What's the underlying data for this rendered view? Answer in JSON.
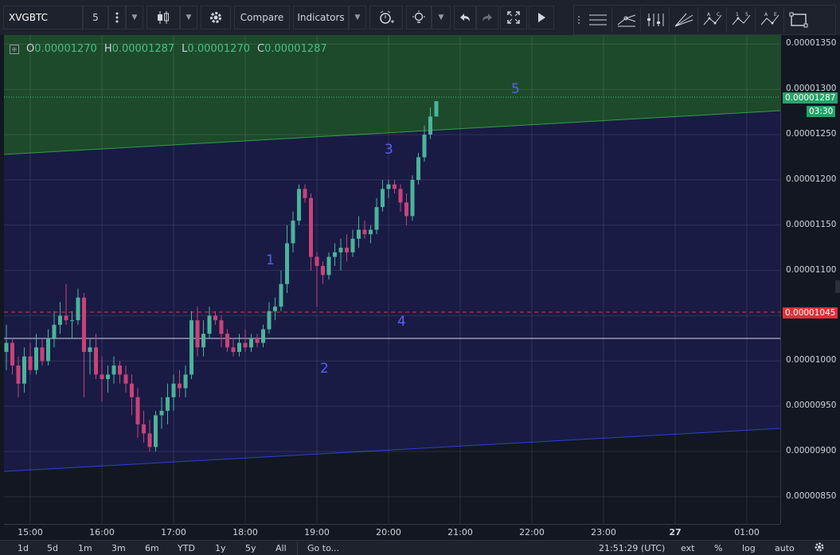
{
  "toolbar": {
    "symbol": "XVGBTC",
    "interval": "5",
    "compare_label": "Compare",
    "indicators_label": "Indicators"
  },
  "legend": {
    "o_label": "O",
    "o_value": "0.00001270",
    "h_label": "H",
    "h_value": "0.00001287",
    "l_label": "L",
    "l_value": "0.00001270",
    "c_label": "C",
    "c_value": "0.00001287"
  },
  "price_axis": {
    "ticks": [
      "0.00001350",
      "0.00001300",
      "0.00001250",
      "0.00001200",
      "0.00001150",
      "0.00001100",
      "0.00001050",
      "0.00001000",
      "0.00000950",
      "0.00000900",
      "0.00000850"
    ],
    "last_price": "0.00001287",
    "countdown": "03:30",
    "alert_price": "0.00001045"
  },
  "time_axis": {
    "ticks": [
      "15:00",
      "16:00",
      "17:00",
      "18:00",
      "19:00",
      "20:00",
      "21:00",
      "22:00",
      "23:00",
      "27",
      "01:00"
    ]
  },
  "wave_labels": [
    "1",
    "2",
    "3",
    "4",
    "5"
  ],
  "bottom_bar": {
    "ranges": [
      "1d",
      "5d",
      "1m",
      "3m",
      "6m",
      "YTD",
      "1y",
      "5y",
      "All"
    ],
    "goto_label": "Go to...",
    "clock": "21:51:29 (UTC)",
    "ext_label": "ext",
    "percent_label": "%",
    "log_label": "log",
    "auto_label": "auto"
  },
  "colors": {
    "up": "#4bb39a",
    "down": "#c9427a",
    "upper_zone": "#1d4a2a",
    "lower_zone": "#191b45",
    "wave_text": "#5b5ff0",
    "alert_line": "#e0303b"
  },
  "chart_data": {
    "type": "candlestick",
    "ylim": [
      8.2e-06,
      1.36e-05
    ],
    "candles": [
      {
        "o": 1.01e-05,
        "h": 1.04e-05,
        "l": 9.9e-06,
        "c": 1.02e-05
      },
      {
        "o": 1.02e-05,
        "h": 1.025e-05,
        "l": 9.85e-06,
        "c": 9.95e-06
      },
      {
        "o": 9.95e-06,
        "h": 1.005e-05,
        "l": 9.6e-06,
        "c": 9.75e-06
      },
      {
        "o": 9.75e-06,
        "h": 1.015e-05,
        "l": 9.65e-06,
        "c": 1.005e-05
      },
      {
        "o": 1.005e-05,
        "h": 1.02e-05,
        "l": 9.85e-06,
        "c": 9.9e-06
      },
      {
        "o": 9.9e-06,
        "h": 1.03e-05,
        "l": 9.85e-06,
        "c": 1.015e-05
      },
      {
        "o": 1.015e-05,
        "h": 1.025e-05,
        "l": 9.95e-06,
        "c": 1e-05
      },
      {
        "o": 1e-05,
        "h": 1.035e-05,
        "l": 9.95e-06,
        "c": 1.025e-05
      },
      {
        "o": 1.025e-05,
        "h": 1.055e-05,
        "l": 1.015e-05,
        "c": 1.04e-05
      },
      {
        "o": 1.04e-05,
        "h": 1.065e-05,
        "l": 1.03e-05,
        "c": 1.05e-05
      },
      {
        "o": 1.05e-05,
        "h": 1.085e-05,
        "l": 1.04e-05,
        "c": 1.045e-05
      },
      {
        "o": 1.045e-05,
        "h": 1.055e-05,
        "l": 1.025e-05,
        "c": 1.045e-05
      },
      {
        "o": 1.045e-05,
        "h": 1.08e-05,
        "l": 1.04e-05,
        "c": 1.07e-05
      },
      {
        "o": 1.07e-05,
        "h": 1.075e-05,
        "l": 9.6e-06,
        "c": 1.01e-05
      },
      {
        "o": 1.01e-05,
        "h": 1.025e-05,
        "l": 9.85e-06,
        "c": 1.015e-05
      },
      {
        "o": 1.015e-05,
        "h": 1.03e-05,
        "l": 9.8e-06,
        "c": 9.85e-06
      },
      {
        "o": 9.85e-06,
        "h": 1.005e-05,
        "l": 9.55e-06,
        "c": 9.8e-06
      },
      {
        "o": 9.8e-06,
        "h": 9.95e-06,
        "l": 9.65e-06,
        "c": 9.85e-06
      },
      {
        "o": 9.85e-06,
        "h": 1.005e-05,
        "l": 9.75e-06,
        "c": 9.95e-06
      },
      {
        "o": 9.95e-06,
        "h": 1e-05,
        "l": 9.75e-06,
        "c": 9.85e-06
      },
      {
        "o": 9.85e-06,
        "h": 9.95e-06,
        "l": 9.65e-06,
        "c": 9.75e-06
      },
      {
        "o": 9.75e-06,
        "h": 9.85e-06,
        "l": 9.4e-06,
        "c": 9.6e-06
      },
      {
        "o": 9.6e-06,
        "h": 9.7e-06,
        "l": 9.15e-06,
        "c": 9.3e-06
      },
      {
        "o": 9.3e-06,
        "h": 9.45e-06,
        "l": 9.1e-06,
        "c": 9.2e-06
      },
      {
        "o": 9.2e-06,
        "h": 9.35e-06,
        "l": 9e-06,
        "c": 9.05e-06
      },
      {
        "o": 9.05e-06,
        "h": 9.45e-06,
        "l": 9e-06,
        "c": 9.4e-06
      },
      {
        "o": 9.4e-06,
        "h": 9.6e-06,
        "l": 9.25e-06,
        "c": 9.45e-06
      },
      {
        "o": 9.45e-06,
        "h": 9.75e-06,
        "l": 9.3e-06,
        "c": 9.6e-06
      },
      {
        "o": 9.6e-06,
        "h": 9.85e-06,
        "l": 9.45e-06,
        "c": 9.75e-06
      },
      {
        "o": 9.75e-06,
        "h": 9.9e-06,
        "l": 9.6e-06,
        "c": 9.7e-06
      },
      {
        "o": 9.7e-06,
        "h": 9.95e-06,
        "l": 9.6e-06,
        "c": 9.85e-06
      },
      {
        "o": 9.85e-06,
        "h": 1.055e-05,
        "l": 9.8e-06,
        "c": 1.045e-05
      },
      {
        "o": 1.045e-05,
        "h": 1.06e-05,
        "l": 1.005e-05,
        "c": 1.015e-05
      },
      {
        "o": 1.015e-05,
        "h": 1.045e-05,
        "l": 1.005e-05,
        "c": 1.03e-05
      },
      {
        "o": 1.03e-05,
        "h": 1.06e-05,
        "l": 1.025e-05,
        "c": 1.05e-05
      },
      {
        "o": 1.05e-05,
        "h": 1.055e-05,
        "l": 1.04e-05,
        "c": 1.045e-05
      },
      {
        "o": 1.045e-05,
        "h": 1.05e-05,
        "l": 1.015e-05,
        "c": 1.03e-05
      },
      {
        "o": 1.03e-05,
        "h": 1.035e-05,
        "l": 1.01e-05,
        "c": 1.015e-05
      },
      {
        "o": 1.015e-05,
        "h": 1.025e-05,
        "l": 1.005e-05,
        "c": 1.01e-05
      },
      {
        "o": 1.01e-05,
        "h": 1.03e-05,
        "l": 1.005e-05,
        "c": 1.02e-05
      },
      {
        "o": 1.02e-05,
        "h": 1.035e-05,
        "l": 1.01e-05,
        "c": 1.015e-05
      },
      {
        "o": 1.015e-05,
        "h": 1.03e-05,
        "l": 1.01e-05,
        "c": 1.025e-05
      },
      {
        "o": 1.025e-05,
        "h": 1.03e-05,
        "l": 1.015e-05,
        "c": 1.02e-05
      },
      {
        "o": 1.02e-05,
        "h": 1.04e-05,
        "l": 1.015e-05,
        "c": 1.035e-05
      },
      {
        "o": 1.035e-05,
        "h": 1.065e-05,
        "l": 1.03e-05,
        "c": 1.055e-05
      },
      {
        "o": 1.055e-05,
        "h": 1.07e-05,
        "l": 1.045e-05,
        "c": 1.06e-05
      },
      {
        "o": 1.06e-05,
        "h": 1.1e-05,
        "l": 1.055e-05,
        "c": 1.085e-05
      },
      {
        "o": 1.085e-05,
        "h": 1.15e-05,
        "l": 1.075e-05,
        "c": 1.13e-05
      },
      {
        "o": 1.13e-05,
        "h": 1.165e-05,
        "l": 1.12e-05,
        "c": 1.155e-05
      },
      {
        "o": 1.155e-05,
        "h": 1.195e-05,
        "l": 1.15e-05,
        "c": 1.19e-05
      },
      {
        "o": 1.19e-05,
        "h": 1.195e-05,
        "l": 1.175e-05,
        "c": 1.18e-05
      },
      {
        "o": 1.18e-05,
        "h": 1.185e-05,
        "l": 1.1e-05,
        "c": 1.115e-05
      },
      {
        "o": 1.115e-05,
        "h": 1.12e-05,
        "l": 1.06e-05,
        "c": 1.105e-05
      },
      {
        "o": 1.105e-05,
        "h": 1.11e-05,
        "l": 1.085e-05,
        "c": 1.095e-05
      },
      {
        "o": 1.095e-05,
        "h": 1.12e-05,
        "l": 1.09e-05,
        "c": 1.115e-05
      },
      {
        "o": 1.115e-05,
        "h": 1.13e-05,
        "l": 1.105e-05,
        "c": 1.12e-05
      },
      {
        "o": 1.12e-05,
        "h": 1.135e-05,
        "l": 1.1e-05,
        "c": 1.125e-05
      },
      {
        "o": 1.125e-05,
        "h": 1.14e-05,
        "l": 1.11e-05,
        "c": 1.12e-05
      },
      {
        "o": 1.12e-05,
        "h": 1.145e-05,
        "l": 1.115e-05,
        "c": 1.135e-05
      },
      {
        "o": 1.135e-05,
        "h": 1.16e-05,
        "l": 1.125e-05,
        "c": 1.145e-05
      },
      {
        "o": 1.145e-05,
        "h": 1.155e-05,
        "l": 1.135e-05,
        "c": 1.14e-05
      },
      {
        "o": 1.14e-05,
        "h": 1.15e-05,
        "l": 1.13e-05,
        "c": 1.145e-05
      },
      {
        "o": 1.145e-05,
        "h": 1.18e-05,
        "l": 1.14e-05,
        "c": 1.17e-05
      },
      {
        "o": 1.17e-05,
        "h": 1.2e-05,
        "l": 1.165e-05,
        "c": 1.19e-05
      },
      {
        "o": 1.19e-05,
        "h": 1.2e-05,
        "l": 1.18e-05,
        "c": 1.195e-05
      },
      {
        "o": 1.195e-05,
        "h": 1.2e-05,
        "l": 1.185e-05,
        "c": 1.19e-05
      },
      {
        "o": 1.19e-05,
        "h": 1.195e-05,
        "l": 1.165e-05,
        "c": 1.175e-05
      },
      {
        "o": 1.175e-05,
        "h": 1.185e-05,
        "l": 1.15e-05,
        "c": 1.16e-05
      },
      {
        "o": 1.16e-05,
        "h": 1.205e-05,
        "l": 1.155e-05,
        "c": 1.2e-05
      },
      {
        "o": 1.2e-05,
        "h": 1.23e-05,
        "l": 1.195e-05,
        "c": 1.225e-05
      },
      {
        "o": 1.225e-05,
        "h": 1.26e-05,
        "l": 1.22e-05,
        "c": 1.25e-05
      },
      {
        "o": 1.25e-05,
        "h": 1.28e-05,
        "l": 1.245e-05,
        "c": 1.27e-05
      },
      {
        "o": 1.27e-05,
        "h": 1.287e-05,
        "l": 1.27e-05,
        "c": 1.287e-05
      }
    ]
  }
}
